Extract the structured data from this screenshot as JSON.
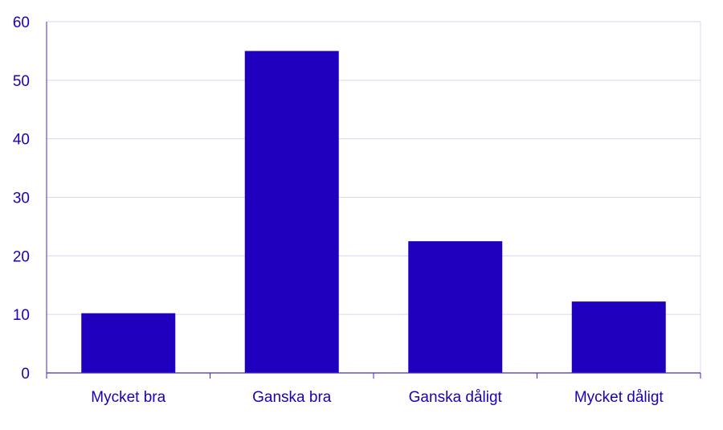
{
  "chart_data": {
    "type": "bar",
    "categories": [
      "Mycket bra",
      "Ganska bra",
      "Ganska dåligt",
      "Mycket dåligt"
    ],
    "values": [
      10.2,
      55.0,
      22.5,
      12.2
    ],
    "title": "",
    "xlabel": "",
    "ylabel": "",
    "ylim": [
      0,
      60
    ],
    "yticks": [
      0,
      10,
      20,
      30,
      40,
      50,
      60
    ],
    "ytick_labels": [
      "0",
      "10",
      "20",
      "30",
      "40",
      "50",
      "60"
    ],
    "grid": true,
    "legend": "none"
  },
  "colors": {
    "bar": "#2000BE",
    "text": "#1E00B4",
    "axis": "#3A2FC0",
    "grid": "#D9D6F2"
  }
}
